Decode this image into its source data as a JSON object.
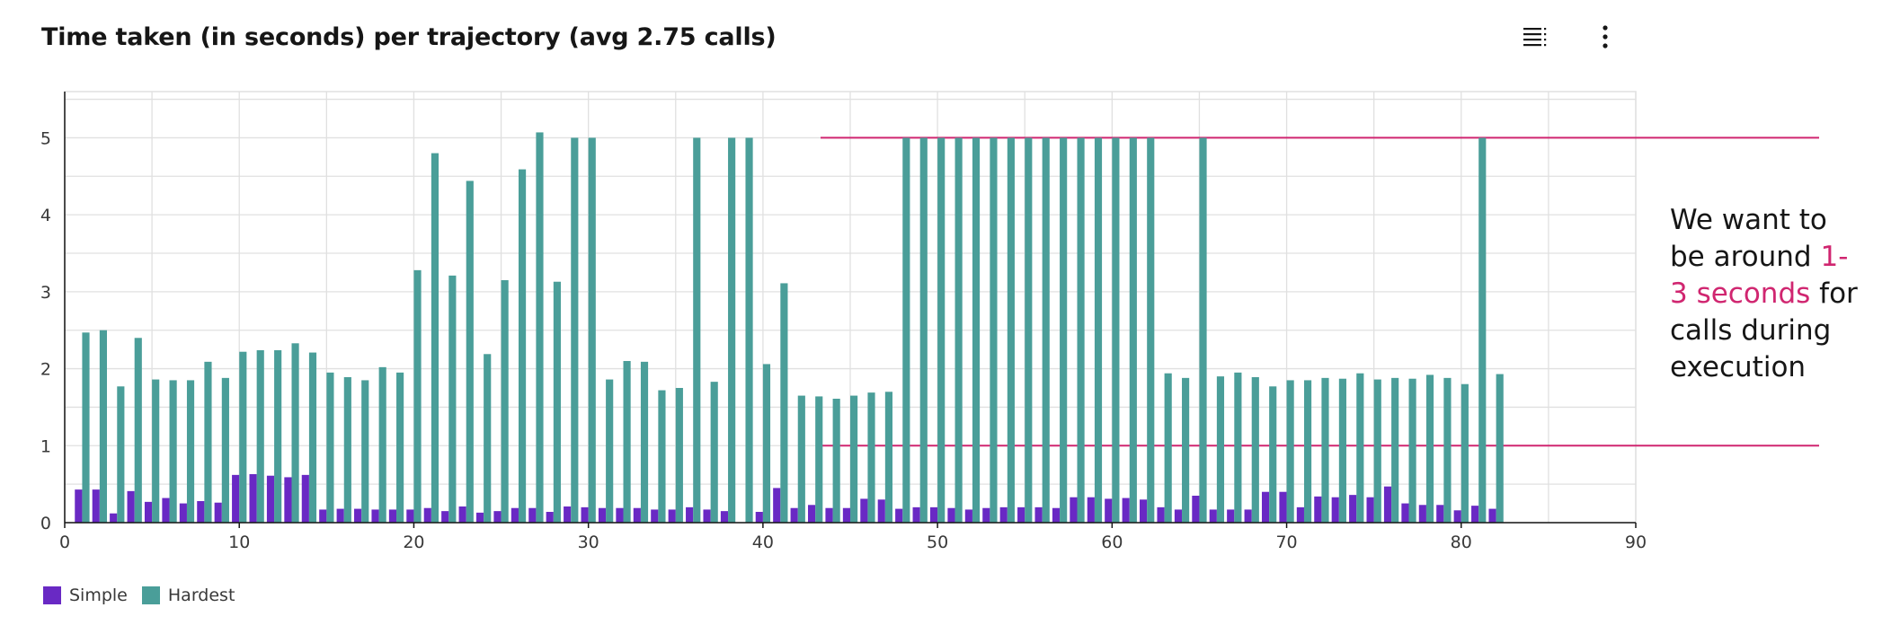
{
  "header": {
    "title": "Time taken (in seconds) per trajectory (avg 2.75 calls)",
    "table_icon": "table-view-icon",
    "overflow_icon": "overflow-menu-vertical-icon"
  },
  "annotation": {
    "line1": "We want to",
    "line2_pre": "be around ",
    "highlight": "1-3 seconds",
    "line3_post": " for",
    "line4": "calls during",
    "line5": "execution",
    "color": "#d02670"
  },
  "chart_data": {
    "type": "bar",
    "title": "Time taken (in seconds) per trajectory (avg 2.75 calls)",
    "xlabel": "",
    "ylabel": "",
    "xlim": [
      0,
      90
    ],
    "ylim": [
      0,
      5.6
    ],
    "x_ticks": [
      0,
      10,
      20,
      30,
      40,
      50,
      60,
      70,
      80,
      90
    ],
    "y_ticks": [
      0,
      1,
      2,
      3,
      4,
      5
    ],
    "grid": true,
    "legend_position": "bottom-left",
    "x": [
      1,
      2,
      3,
      4,
      5,
      6,
      7,
      8,
      9,
      10,
      11,
      12,
      13,
      14,
      15,
      16,
      17,
      18,
      19,
      20,
      21,
      22,
      23,
      24,
      25,
      26,
      27,
      28,
      29,
      30,
      31,
      32,
      33,
      34,
      35,
      36,
      37,
      38,
      39,
      40,
      41,
      42,
      43,
      44,
      45,
      46,
      47,
      48,
      49,
      50,
      51,
      52,
      53,
      54,
      55,
      56,
      57,
      58,
      59,
      60,
      61,
      62,
      63,
      64,
      65,
      66,
      67,
      68,
      69,
      70,
      71,
      72,
      73,
      74,
      75,
      76,
      77,
      78,
      79,
      80,
      81,
      82
    ],
    "series": [
      {
        "name": "Simple",
        "color": "#6929c4",
        "values": [
          0.43,
          0.43,
          0.12,
          0.41,
          0.27,
          0.32,
          0.25,
          0.28,
          0.26,
          0.62,
          0.63,
          0.61,
          0.59,
          0.62,
          0.17,
          0.18,
          0.18,
          0.17,
          0.17,
          0.17,
          0.19,
          0.15,
          0.21,
          0.13,
          0.15,
          0.19,
          0.19,
          0.14,
          0.21,
          0.2,
          0.19,
          0.19,
          0.19,
          0.17,
          0.17,
          0.2,
          0.17,
          0.15,
          0.0,
          0.14,
          0.45,
          0.19,
          0.23,
          0.19,
          0.19,
          0.31,
          0.3,
          0.18,
          0.2,
          0.2,
          0.19,
          0.17,
          0.19,
          0.2,
          0.2,
          0.2,
          0.19,
          0.33,
          0.33,
          0.31,
          0.32,
          0.3,
          0.2,
          0.17,
          0.35,
          0.17,
          0.17,
          0.17,
          0.4,
          0.4,
          0.2,
          0.34,
          0.33,
          0.36,
          0.33,
          0.47,
          0.25,
          0.23,
          0.23,
          0.16,
          0.22,
          0.18
        ]
      },
      {
        "name": "Hardest",
        "color": "#4a9e99",
        "values": [
          2.47,
          2.5,
          1.77,
          2.4,
          1.86,
          1.85,
          1.85,
          2.09,
          1.88,
          2.22,
          2.24,
          2.24,
          2.33,
          2.21,
          1.95,
          1.89,
          1.85,
          2.02,
          1.95,
          3.28,
          4.8,
          3.21,
          4.44,
          2.19,
          3.15,
          4.59,
          5.07,
          3.13,
          5.0,
          5.0,
          1.86,
          2.1,
          2.09,
          1.72,
          1.75,
          5.0,
          1.83,
          5.0,
          5.0,
          2.06,
          3.11,
          1.65,
          1.64,
          1.61,
          1.65,
          1.69,
          1.7,
          5.0,
          5.0,
          5.0,
          5.0,
          5.0,
          5.0,
          5.0,
          5.0,
          5.0,
          5.0,
          5.0,
          5.0,
          5.0,
          5.0,
          5.0,
          1.94,
          1.88,
          5.0,
          1.9,
          1.95,
          1.89,
          1.77,
          1.85,
          1.85,
          1.88,
          1.87,
          1.94,
          1.86,
          1.88,
          1.87,
          1.92,
          1.88,
          1.8,
          5.0,
          1.93
        ]
      }
    ],
    "reference_lines": [
      {
        "y": 5,
        "x_start": 43.3,
        "color": "#d02670"
      },
      {
        "y": 1,
        "x_start": 43.3,
        "color": "#d02670"
      }
    ]
  }
}
